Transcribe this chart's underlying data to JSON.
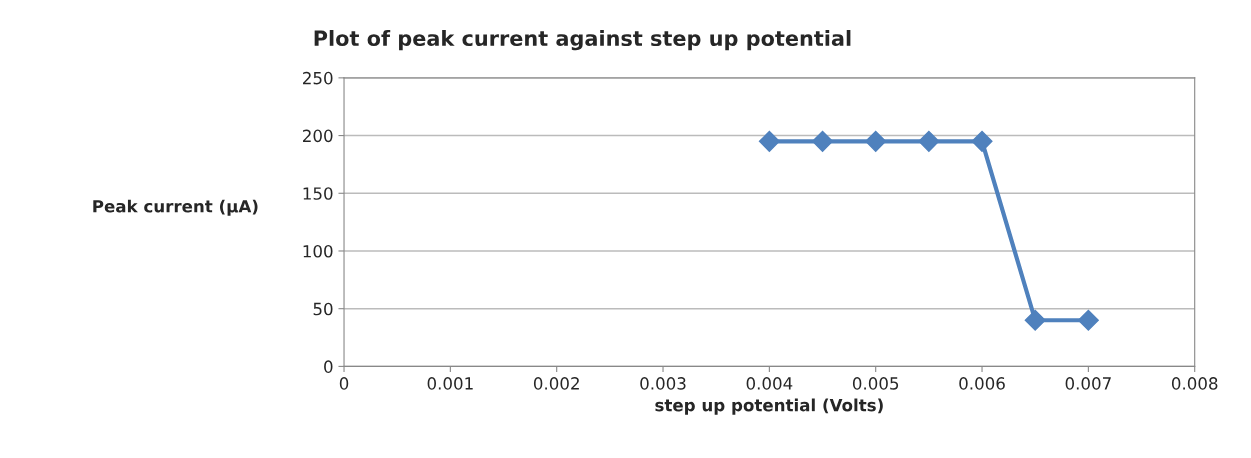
{
  "chart_data": {
    "type": "line",
    "title": "Plot of peak current against step up potential",
    "xlabel": "step up potential (Volts)",
    "ylabel": "Peak current (µA)",
    "x": [
      0.004,
      0.0045,
      0.005,
      0.0055,
      0.006,
      0.0065,
      0.007
    ],
    "series": [
      {
        "color": "#4f81bd",
        "values": [
          195,
          195,
          195,
          195,
          195,
          40,
          40
        ]
      }
    ],
    "xlim": [
      0,
      0.008
    ],
    "xticks": [
      0,
      0.001,
      0.002,
      0.003,
      0.004,
      0.005,
      0.006,
      0.007,
      0.008
    ],
    "ylim": [
      0,
      250
    ],
    "yticks": [
      0,
      50,
      100,
      150,
      200,
      250
    ],
    "grid": "y",
    "marker": "diamond",
    "line_style": "solid"
  }
}
